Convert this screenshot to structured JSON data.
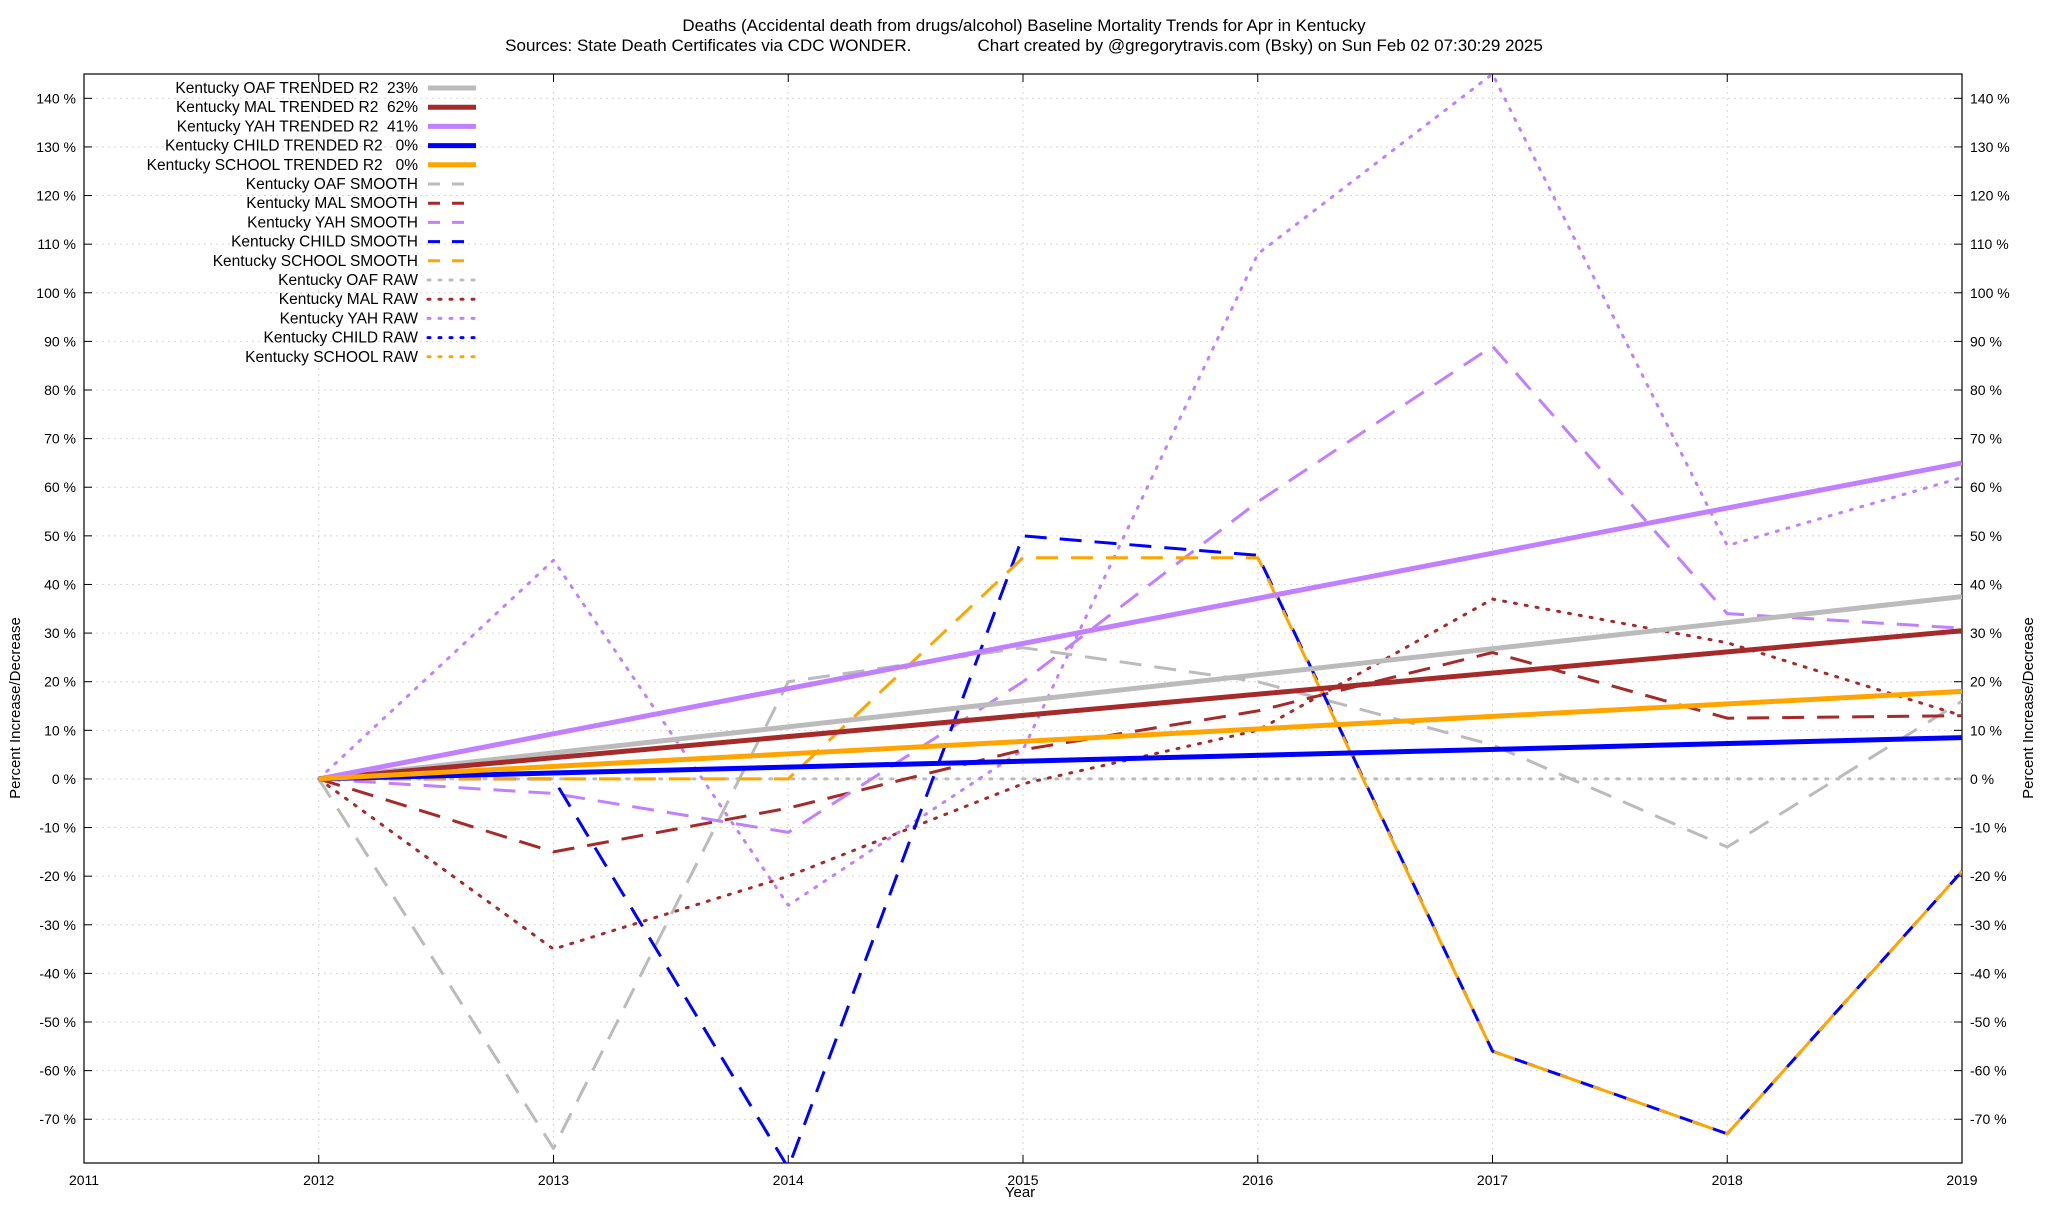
{
  "chart_data": {
    "type": "line",
    "title": "Deaths (Accidental death from drugs/alcohol)  Baseline Mortality Trends for Apr in Kentucky",
    "subtitle": "Sources: State Death Certificates via CDC WONDER.              Chart created by @gregorytravis.com (Bsky) on Sun Feb 02 07:30:29 2025",
    "xlabel": "Year",
    "ylabel_left": "Percent Increase/Decrease",
    "ylabel_right": "Percent Increase/Decrease",
    "x_ticks": [
      "2011",
      "2012",
      "2013",
      "2014",
      "2015",
      "2016",
      "2017",
      "2018",
      "2019"
    ],
    "y_ticks": [
      "-70 %",
      "-60 %",
      "-50 %",
      "-40 %",
      "-30 %",
      "-20 %",
      "-10 %",
      "0 %",
      "10 %",
      "20 %",
      "30 %",
      "40 %",
      "50 %",
      "60 %",
      "70 %",
      "80 %",
      "90 %",
      "100 %",
      "110 %",
      "120 %",
      "130 %",
      "140 %"
    ],
    "xlim": [
      2011,
      2019
    ],
    "ylim": [
      -79,
      145
    ],
    "grid": true,
    "legend_position": "top-left",
    "series": [
      {
        "name": "Kentucky OAF TRENDED R2  23%",
        "color": "#bbbbbb",
        "style": "solid",
        "width": 5,
        "x": [
          2012,
          2019
        ],
        "values": [
          0,
          37.5
        ]
      },
      {
        "name": "Kentucky MAL TRENDED R2  62%",
        "color": "#a52a2a",
        "style": "solid",
        "width": 5,
        "x": [
          2012,
          2019
        ],
        "values": [
          0,
          30.5
        ]
      },
      {
        "name": "Kentucky YAH TRENDED R2  41%",
        "color": "#c080ff",
        "style": "solid",
        "width": 5,
        "x": [
          2012,
          2019
        ],
        "values": [
          0,
          65
        ]
      },
      {
        "name": "Kentucky CHILD TRENDED R2   0%",
        "color": "#0000ff",
        "style": "solid",
        "width": 5,
        "x": [
          2012,
          2019
        ],
        "values": [
          0,
          8.5
        ]
      },
      {
        "name": "Kentucky SCHOOL TRENDED R2   0%",
        "color": "#ffa500",
        "style": "solid",
        "width": 5,
        "x": [
          2012,
          2019
        ],
        "values": [
          0,
          18
        ]
      },
      {
        "name": "Kentucky OAF SMOOTH",
        "color": "#bbbbbb",
        "style": "dashed",
        "width": 3,
        "x": [
          2012,
          2013,
          2014,
          2015,
          2016,
          2017,
          2018,
          2019
        ],
        "values": [
          0,
          -76,
          20,
          27,
          20,
          7,
          -14,
          16
        ]
      },
      {
        "name": "Kentucky MAL SMOOTH",
        "color": "#a52a2a",
        "style": "dashed",
        "width": 3,
        "x": [
          2012,
          2013,
          2014,
          2015,
          2016,
          2017,
          2018,
          2019
        ],
        "values": [
          0,
          -15,
          -6,
          6,
          14,
          26,
          12.5,
          13
        ]
      },
      {
        "name": "Kentucky YAH SMOOTH",
        "color": "#c080ff",
        "style": "dashed",
        "width": 3,
        "x": [
          2012,
          2013,
          2014,
          2015,
          2016,
          2017,
          2018,
          2019
        ],
        "values": [
          0,
          -3,
          -11,
          20,
          57,
          89,
          34,
          31
        ]
      },
      {
        "name": "Kentucky CHILD SMOOTH",
        "color": "#0000ff",
        "style": "dashed",
        "width": 3,
        "x": [
          2012,
          2013,
          2014,
          2015,
          2016,
          2017,
          2018,
          2019
        ],
        "values": [
          0,
          0,
          -80,
          50,
          46,
          -56,
          -73,
          -19
        ]
      },
      {
        "name": "Kentucky SCHOOL SMOOTH",
        "color": "#ffa500",
        "style": "dashed",
        "width": 3,
        "x": [
          2012,
          2013,
          2014,
          2015,
          2016,
          2017,
          2018,
          2019
        ],
        "values": [
          0,
          0,
          0,
          45.5,
          45.5,
          -56,
          -73,
          -19
        ]
      },
      {
        "name": "Kentucky OAF RAW",
        "color": "#bbbbbb",
        "style": "dotted",
        "width": 3,
        "x": [
          2012,
          2013,
          2014,
          2015,
          2016,
          2017,
          2018,
          2019
        ],
        "values": [
          0,
          0,
          0,
          0,
          0,
          0,
          0,
          0
        ]
      },
      {
        "name": "Kentucky MAL RAW",
        "color": "#a52a2a",
        "style": "dotted",
        "width": 3,
        "x": [
          2012,
          2013,
          2014,
          2015,
          2016,
          2017,
          2018,
          2019
        ],
        "values": [
          0,
          -35,
          -20,
          -1,
          10,
          37,
          28,
          13
        ]
      },
      {
        "name": "Kentucky YAH RAW",
        "color": "#c080ff",
        "style": "dotted",
        "width": 3,
        "x": [
          2012,
          2013,
          2014,
          2015,
          2016,
          2017,
          2018,
          2019
        ],
        "values": [
          0,
          45,
          -26,
          6,
          108,
          145,
          48,
          62
        ]
      },
      {
        "name": "Kentucky CHILD RAW",
        "color": "#0000ff",
        "style": "dotted",
        "width": 3,
        "x": [],
        "values": []
      },
      {
        "name": "Kentucky SCHOOL RAW",
        "color": "#ffa500",
        "style": "dotted",
        "width": 3,
        "x": [],
        "values": []
      }
    ]
  }
}
